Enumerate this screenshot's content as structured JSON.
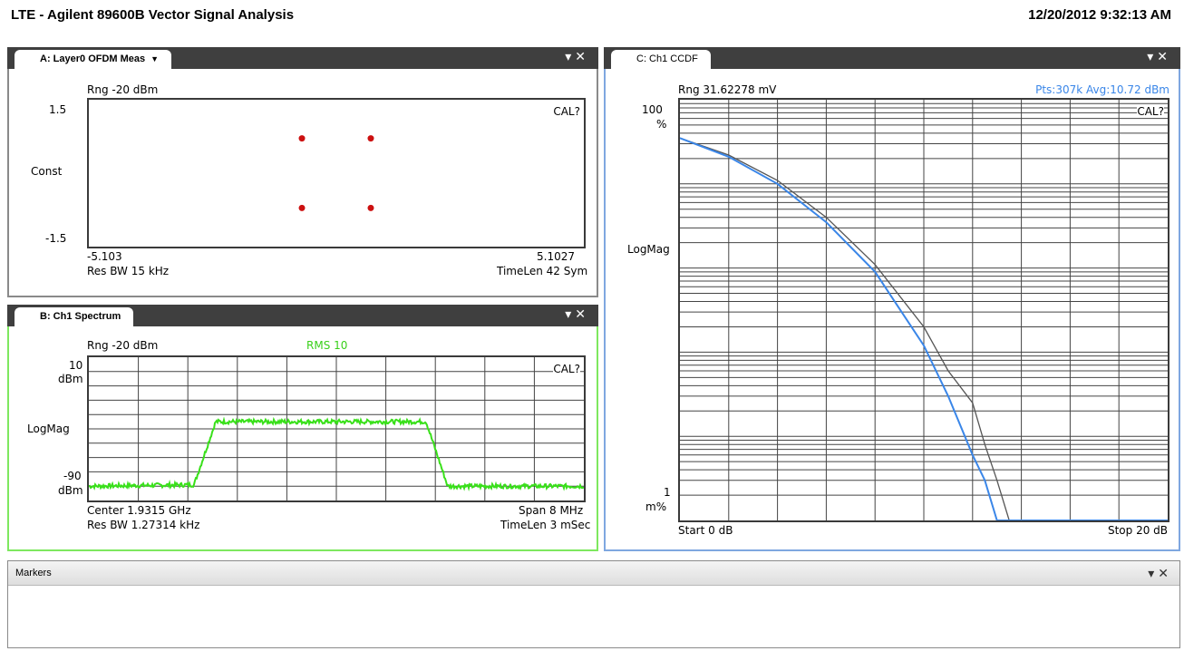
{
  "app": {
    "title": "LTE - Agilent 89600B Vector Signal Analysis",
    "datetime": "12/20/2012 9:32:13 AM"
  },
  "panel_a": {
    "tab_label": "A: Layer0 OFDM Meas",
    "tab_caret": "▼",
    "pin_icon": "pin-down-icon",
    "close_icon": "close-icon",
    "rng": "Rng -20 dBm",
    "cal": "CAL?",
    "y_top": "1.5",
    "y_mid": "Const",
    "y_bot": "-1.5",
    "x_left": "-5.103",
    "x_right": "5.1027",
    "res_bw": "Res BW 15 kHz",
    "timelen": "TimeLen 42  Sym",
    "points_color": "#cc1010",
    "constellation": {
      "type": "scatter",
      "x_range": [
        -5.103,
        5.1027
      ],
      "y_range": [
        -1.5,
        1.5
      ],
      "points": [
        {
          "x": -0.71,
          "y": 0.71
        },
        {
          "x": 0.71,
          "y": 0.71
        },
        {
          "x": -0.71,
          "y": -0.71
        },
        {
          "x": 0.71,
          "y": -0.71
        }
      ]
    }
  },
  "panel_b": {
    "tab_label": "B: Ch1 Spectrum",
    "pin_icon": "pin-down-icon",
    "close_icon": "close-icon",
    "rng": "Rng -20 dBm",
    "rms": "RMS 10",
    "cal": "CAL?",
    "y_top": "10",
    "y_top_unit": "dBm",
    "y_mid": "LogMag",
    "y_bot": "-90",
    "y_bot_unit": "dBm",
    "center": "Center 1.9315 GHz",
    "span": "Span 8 MHz",
    "res_bw": "Res BW 1.27314 kHz",
    "timelen": "TimeLen 3 mSec",
    "trace_color": "#39e01a",
    "chart_data": {
      "type": "line",
      "x_range_mhz": [
        -4,
        4
      ],
      "y_range_dbm": [
        -90,
        10
      ],
      "levels": {
        "noise_floor_dbm": -80,
        "signal_dbm": -35
      },
      "shape": [
        {
          "x": -4.0,
          "y": -80
        },
        {
          "x": -2.3,
          "y": -79
        },
        {
          "x": -1.95,
          "y": -35
        },
        {
          "x": 1.45,
          "y": -35
        },
        {
          "x": 1.8,
          "y": -80
        },
        {
          "x": 4.0,
          "y": -80
        }
      ]
    }
  },
  "panel_c": {
    "tab_label": "C: Ch1 CCDF",
    "pin_icon": "pin-down-icon",
    "close_icon": "close-icon",
    "rng": "Rng 31.62278 mV",
    "pts": "Pts:307k Avg:10.72 dBm",
    "cal": "CAL?",
    "y_top": "100",
    "y_top_unit": "%",
    "y_mid": "LogMag",
    "y_bot": "1",
    "y_bot_unit": "m%",
    "x_start": "Start 0 dB",
    "x_stop": "Stop 20 dB",
    "measured_color": "#3a86e8",
    "reference_color": "#555555",
    "chart_data": {
      "type": "line",
      "x_range_db": [
        0,
        20
      ],
      "y_scale": "log",
      "y_range_percent": [
        0.001,
        100
      ],
      "series": [
        {
          "points": [
            [
              0,
              35
            ],
            [
              2,
              22
            ],
            [
              4,
              11
            ],
            [
              6,
              4
            ],
            [
              8,
              1.1
            ],
            [
              10,
              0.2
            ],
            [
              11,
              0.06
            ],
            [
              12,
              0.025
            ],
            [
              12.5,
              0.008
            ],
            [
              13,
              0.003
            ],
            [
              13.5,
              0.001
            ]
          ]
        },
        {
          "points": [
            [
              0,
              35
            ],
            [
              2,
              21
            ],
            [
              4,
              10
            ],
            [
              6,
              3.5
            ],
            [
              8,
              0.9
            ],
            [
              10,
              0.12
            ],
            [
              11,
              0.03
            ],
            [
              12,
              0.006
            ],
            [
              12.5,
              0.003
            ],
            [
              13,
              0.001
            ]
          ]
        }
      ]
    }
  },
  "markers": {
    "title": "Markers",
    "pin_icon": "pin-down-icon",
    "close_icon": "close-icon"
  }
}
